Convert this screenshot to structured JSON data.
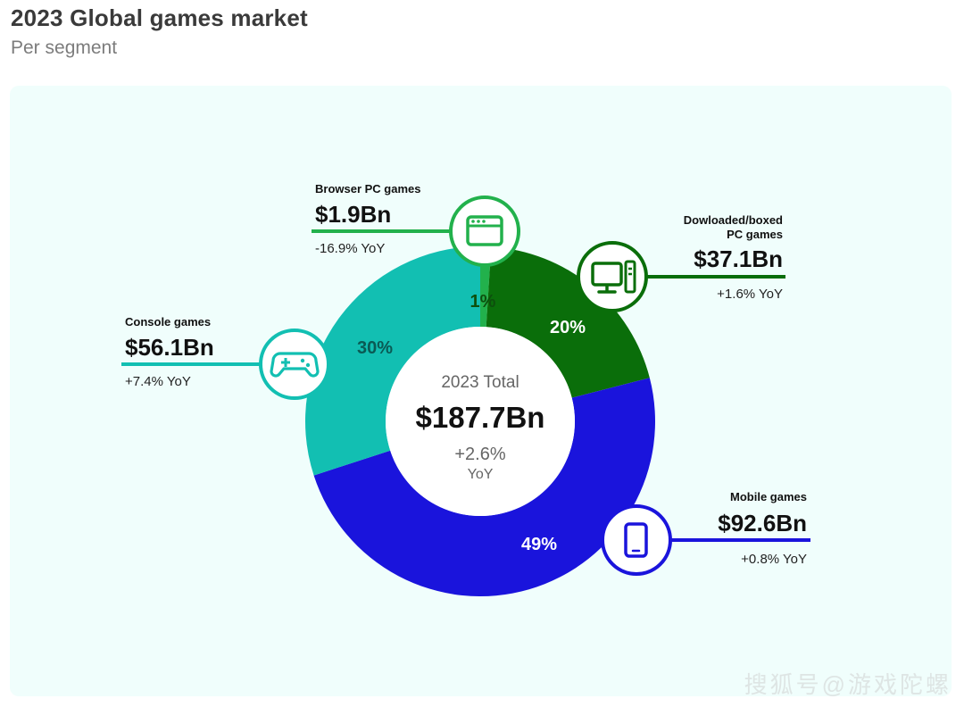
{
  "chart_data": {
    "type": "pie",
    "title": "2023 Global games market",
    "subtitle": "Per segment",
    "center": {
      "heading": "2023 Total",
      "value": "$187.7Bn",
      "change": "+2.6%",
      "yoy": "YoY"
    },
    "slices": [
      {
        "id": "browser",
        "name": "Browser PC games",
        "value_label": "$1.9Bn",
        "value": 1.9,
        "yoy": "-16.9% YoY",
        "percent": 1,
        "percent_label": "1%",
        "color": "#22b14c",
        "icon": "browser-window-icon"
      },
      {
        "id": "downloaded",
        "name_lines": [
          "Dowloaded/boxed",
          "PC games"
        ],
        "value_label": "$37.1Bn",
        "value": 37.1,
        "yoy": "+1.6% YoY",
        "percent": 20,
        "percent_label": "20%",
        "color": "#0a6e0a",
        "icon": "desktop-pc-icon"
      },
      {
        "id": "mobile",
        "name": "Mobile games",
        "value_label": "$92.6Bn",
        "value": 92.6,
        "yoy": "+0.8% YoY",
        "percent": 49,
        "percent_label": "49%",
        "color": "#1a14dc",
        "icon": "smartphone-icon"
      },
      {
        "id": "console",
        "name": "Console games",
        "value_label": "$56.1Bn",
        "value": 56.1,
        "yoy": "+7.4% YoY",
        "percent": 30,
        "percent_label": "30%",
        "color": "#12bfb2",
        "icon": "gamepad-icon"
      }
    ]
  },
  "watermark": "搜狐号@游戏陀螺"
}
